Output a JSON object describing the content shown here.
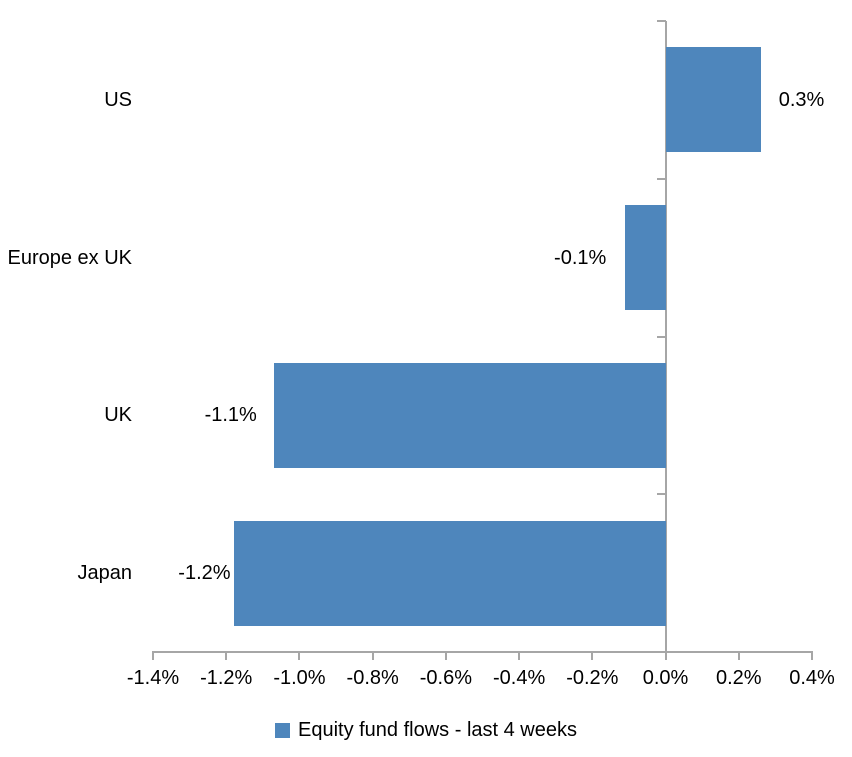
{
  "chart_data": {
    "type": "bar",
    "orientation": "horizontal",
    "title": "",
    "xlabel": "",
    "ylabel": "",
    "categories": [
      "US",
      "Europe ex UK",
      "UK",
      "Japan"
    ],
    "series": [
      {
        "name": "Equity fund flows - last 4 weeks",
        "values": [
          0.3,
          -0.1,
          -1.1,
          -1.2
        ],
        "data_labels": [
          "0.3%",
          "-0.1%",
          "-1.1%",
          "-1.2%"
        ],
        "bar_lengths_pct_estimated": [
          0.26,
          -0.11,
          -1.07,
          -1.18
        ]
      }
    ],
    "x_ticks": [
      {
        "label": "-1.4%",
        "value": -1.4
      },
      {
        "label": "-1.2%",
        "value": -1.2
      },
      {
        "label": "-1.0%",
        "value": -1.0
      },
      {
        "label": "-0.8%",
        "value": -0.8
      },
      {
        "label": "-0.6%",
        "value": -0.6
      },
      {
        "label": "-0.4%",
        "value": -0.4
      },
      {
        "label": "-0.2%",
        "value": -0.2
      },
      {
        "label": "0.0%",
        "value": 0.0
      },
      {
        "label": "0.2%",
        "value": 0.2
      },
      {
        "label": "0.4%",
        "value": 0.4
      }
    ],
    "xlim": [
      -1.4,
      0.4
    ],
    "grid": false,
    "legend_position": "bottom",
    "colors": {
      "bar": "#4E86BC",
      "axis": "#A6A6A6",
      "text": "#000000",
      "background": "#FFFFFF"
    }
  },
  "legend": {
    "label": "Equity fund flows - last 4 weeks"
  }
}
